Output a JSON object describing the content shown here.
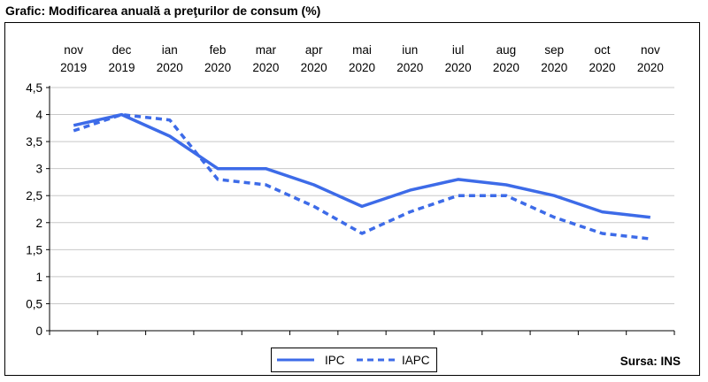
{
  "chart_data": {
    "type": "line",
    "title": "Grafic: Modificarea anuală a preţurilor de consum (%)",
    "source": "Sursa: INS",
    "categories": [
      [
        "nov",
        "2019"
      ],
      [
        "dec",
        "2019"
      ],
      [
        "ian",
        "2020"
      ],
      [
        "feb",
        "2020"
      ],
      [
        "mar",
        "2020"
      ],
      [
        "apr",
        "2020"
      ],
      [
        "mai",
        "2020"
      ],
      [
        "iun",
        "2020"
      ],
      [
        "iul",
        "2020"
      ],
      [
        "aug",
        "2020"
      ],
      [
        "sep",
        "2020"
      ],
      [
        "oct",
        "2020"
      ],
      [
        "nov",
        "2020"
      ]
    ],
    "ylim": [
      0,
      4.5
    ],
    "yticks": [
      "0",
      "0,5",
      "1",
      "1,5",
      "2",
      "2,5",
      "3",
      "3,5",
      "4",
      "4,5"
    ],
    "grid": true,
    "legend_position": "bottom-center",
    "series": [
      {
        "name": "IPC",
        "style": "solid",
        "color": "#3d6be8",
        "values": [
          3.8,
          4.0,
          3.6,
          3.0,
          3.0,
          2.7,
          2.3,
          2.6,
          2.8,
          2.7,
          2.5,
          2.2,
          2.1
        ]
      },
      {
        "name": "IAPC",
        "style": "dashed",
        "color": "#3d6be8",
        "values": [
          3.7,
          4.0,
          3.9,
          2.8,
          2.7,
          2.3,
          1.8,
          2.2,
          2.5,
          2.5,
          2.1,
          1.8,
          1.7
        ]
      }
    ]
  }
}
